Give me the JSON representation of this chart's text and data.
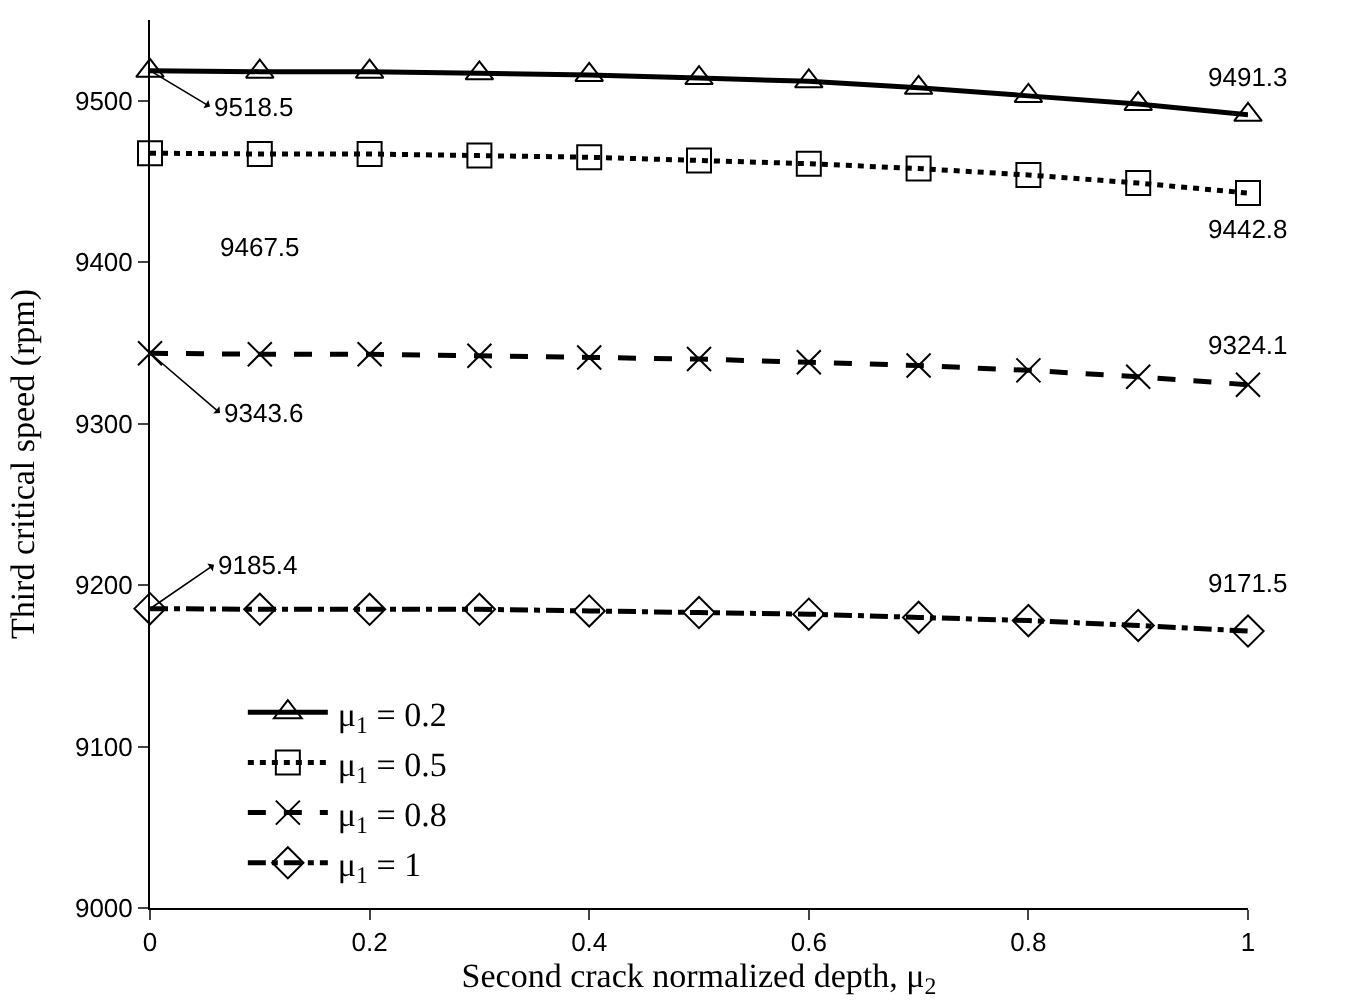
{
  "chart_data": {
    "type": "line",
    "xlabel": "Second crack normalized depth, μ$_{2}$",
    "ylabel": "Third critical speed (rpm)",
    "x": [
      0,
      0.1,
      0.2,
      0.3,
      0.4,
      0.5,
      0.6,
      0.7,
      0.8,
      0.9,
      1
    ],
    "xlim": [
      0,
      1
    ],
    "xticks": [
      0,
      0.2,
      0.4,
      0.6,
      0.8,
      1
    ],
    "ylim": [
      9000,
      9550
    ],
    "yticks": [
      9000,
      9100,
      9200,
      9300,
      9400,
      9500
    ],
    "legend": "bottom left",
    "series": [
      {
        "name": "μ$_{1}$ = 0.2",
        "color": "#000000",
        "marker": "triangle",
        "line_style": "solid",
        "values": [
          9518.5,
          9518,
          9518,
          9517,
          9516,
          9514,
          9512,
          9508,
          9503,
          9498,
          9491.3
        ]
      },
      {
        "name": "μ$_{1}$ = 0.5",
        "color": "#000000",
        "marker": "square",
        "line_style": "dotted",
        "values": [
          9467.5,
          9467,
          9467,
          9466,
          9465,
          9463,
          9461,
          9458,
          9454,
          9449,
          9442.8
        ]
      },
      {
        "name": "μ$_{1}$ = 0.8",
        "color": "#000000",
        "marker": "cross",
        "line_style": "dashed",
        "values": [
          9343.6,
          9343,
          9343,
          9342,
          9341,
          9340,
          9338,
          9336,
          9333,
          9329,
          9324.1
        ]
      },
      {
        "name": "μ$_{1}$ = 1",
        "color": "#000000",
        "marker": "diamond",
        "line_style": "dashdot",
        "values": [
          9185.4,
          9185,
          9185,
          9185,
          9184,
          9183,
          9182,
          9180,
          9178,
          9175,
          9171.5
        ]
      }
    ],
    "annotations": [
      "9518.5",
      "9491.3",
      "9467.5",
      "9442.8",
      "9343.6",
      "9324.1",
      "9185.4",
      "9171.5"
    ]
  }
}
